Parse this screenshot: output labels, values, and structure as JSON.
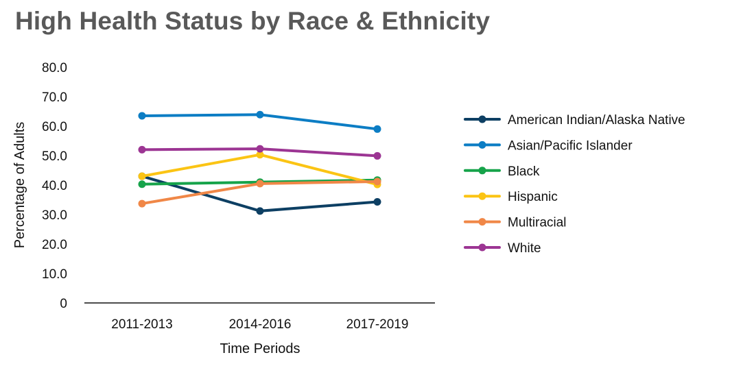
{
  "chart_data": {
    "type": "line",
    "title": "High Health Status by Race & Ethnicity",
    "xlabel": "Time Periods",
    "ylabel": "Percentage of Adults",
    "ylim": [
      0,
      80
    ],
    "y_ticks": [
      "0",
      "10.0",
      "20.0",
      "30.0",
      "40.0",
      "50.0",
      "60.0",
      "70.0",
      "80.0"
    ],
    "y_tick_values": [
      0,
      10,
      20,
      30,
      40,
      50,
      60,
      70,
      80
    ],
    "categories": [
      "2011-2013",
      "2014-2016",
      "2017-2019"
    ],
    "legend_position": "right",
    "grid": false,
    "series": [
      {
        "name": "American Indian/Alaska Native",
        "color": "#0d3f63",
        "values": [
          43.0,
          31.2,
          34.3
        ]
      },
      {
        "name": "Asian/Pacific Islander",
        "color": "#0c7dc4",
        "values": [
          63.5,
          63.9,
          59.0
        ]
      },
      {
        "name": "Black",
        "color": "#16a34a",
        "values": [
          40.3,
          41.0,
          41.7
        ]
      },
      {
        "name": "Hispanic",
        "color": "#fbc414",
        "values": [
          43.0,
          50.3,
          40.2
        ]
      },
      {
        "name": "Multiracial",
        "color": "#f08747",
        "values": [
          33.7,
          40.5,
          41.2
        ]
      },
      {
        "name": "White",
        "color": "#9c3593",
        "values": [
          52.0,
          52.3,
          49.9
        ]
      }
    ]
  }
}
